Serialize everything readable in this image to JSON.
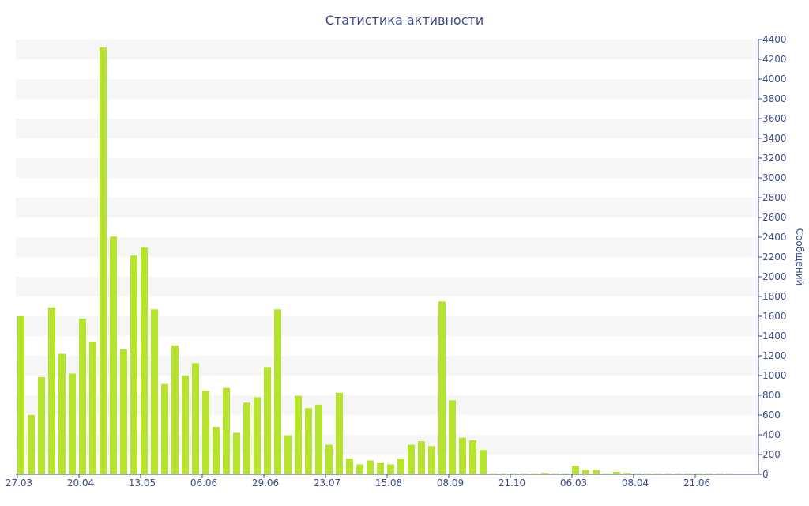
{
  "chart_data": {
    "type": "bar",
    "title": "Статистика активности",
    "xlabel": "",
    "ylabel": "Сообщений",
    "ylim": [
      0,
      4400
    ],
    "ytick_step": 200,
    "grid": true,
    "y_axis_side": "right",
    "x_ticks": [
      "27.03",
      "20.04",
      "13.05",
      "06.06",
      "29.06",
      "23.07",
      "15.08",
      "08.09",
      "21.10",
      "06.03",
      "08.04",
      "21.06"
    ],
    "x_tick_bar_index": [
      0,
      6,
      12,
      18,
      24,
      30,
      36,
      42,
      48,
      54,
      60,
      66
    ],
    "values": [
      1600,
      600,
      985,
      1690,
      1220,
      1020,
      1575,
      1345,
      4320,
      2405,
      1265,
      2215,
      2295,
      1670,
      915,
      1305,
      1000,
      1125,
      845,
      480,
      875,
      420,
      725,
      780,
      1085,
      1670,
      395,
      795,
      670,
      705,
      300,
      825,
      160,
      100,
      140,
      120,
      100,
      160,
      300,
      335,
      285,
      1750,
      750,
      370,
      345,
      245,
      10,
      10,
      10,
      10,
      10,
      15,
      10,
      10,
      85,
      45,
      45,
      10,
      25,
      15,
      10,
      10,
      10,
      10,
      10,
      10,
      10,
      10,
      10,
      10
    ],
    "bar_color": "#b5e32e",
    "band_color": "#f6f6f6",
    "axis_color": "#3e4a8a"
  }
}
